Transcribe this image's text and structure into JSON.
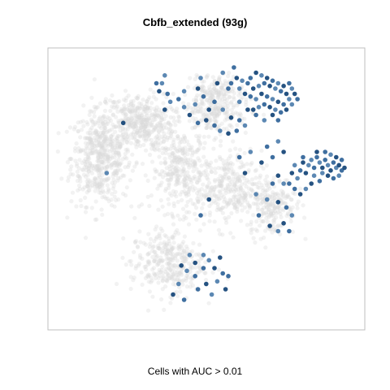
{
  "chart_data": {
    "type": "scatter",
    "title": "Cbfb_extended (93g)",
    "xlabel": "Cells with AUC > 0.01",
    "ylabel": "",
    "axes_ticks": false,
    "grid": false,
    "legend": "none",
    "colors": {
      "background_cells": "#d9d9d9",
      "highlight_cells_dark": "#0d3f73",
      "highlight_cells_mid": "#2a5f96",
      "highlight_cells_light": "#4a7bab",
      "frame": "#bfbfbf"
    },
    "xlim": [
      0,
      100
    ],
    "ylim": [
      0,
      100
    ],
    "background_clusters": [
      {
        "cx": 16,
        "cy": 62,
        "sx": 9,
        "sy": 15,
        "n": 520
      },
      {
        "cx": 30,
        "cy": 75,
        "sx": 10,
        "sy": 9,
        "n": 380
      },
      {
        "cx": 45,
        "cy": 57,
        "sx": 9,
        "sy": 13,
        "n": 320
      },
      {
        "cx": 57,
        "cy": 80,
        "sx": 10,
        "sy": 8,
        "n": 250
      },
      {
        "cx": 62,
        "cy": 50,
        "sx": 10,
        "sy": 12,
        "n": 300
      },
      {
        "cx": 78,
        "cy": 44,
        "sx": 7,
        "sy": 10,
        "n": 200
      },
      {
        "cx": 40,
        "cy": 22,
        "sx": 11,
        "sy": 10,
        "n": 330
      },
      {
        "cx": 58,
        "cy": 88,
        "sx": 6,
        "sy": 4,
        "n": 80
      }
    ],
    "highlight_cells": [
      [
        72,
        94
      ],
      [
        70,
        92
      ],
      [
        74,
        93
      ],
      [
        76,
        92
      ],
      [
        78,
        91
      ],
      [
        80,
        90
      ],
      [
        82,
        89
      ],
      [
        84,
        90
      ],
      [
        85,
        88
      ],
      [
        83,
        86
      ],
      [
        81,
        87
      ],
      [
        79,
        88
      ],
      [
        77,
        89
      ],
      [
        75,
        90
      ],
      [
        73,
        89
      ],
      [
        71,
        88
      ],
      [
        69,
        90
      ],
      [
        67,
        91
      ],
      [
        65,
        92
      ],
      [
        63,
        90
      ],
      [
        66,
        88
      ],
      [
        68,
        86
      ],
      [
        70,
        85
      ],
      [
        72,
        84
      ],
      [
        74,
        86
      ],
      [
        76,
        85
      ],
      [
        78,
        84
      ],
      [
        80,
        83
      ],
      [
        82,
        82
      ],
      [
        84,
        84
      ],
      [
        86,
        86
      ],
      [
        87,
        84
      ],
      [
        85,
        82
      ],
      [
        83,
        80
      ],
      [
        81,
        79
      ],
      [
        79,
        80
      ],
      [
        77,
        81
      ],
      [
        75,
        82
      ],
      [
        73,
        81
      ],
      [
        71,
        80
      ],
      [
        64,
        96
      ],
      [
        60,
        94
      ],
      [
        58,
        90
      ],
      [
        62,
        88
      ],
      [
        66,
        83
      ],
      [
        69,
        80
      ],
      [
        72,
        78
      ],
      [
        75,
        76
      ],
      [
        78,
        78
      ],
      [
        80,
        76
      ],
      [
        52,
        92
      ],
      [
        51,
        88
      ],
      [
        53,
        85
      ],
      [
        50,
        82
      ],
      [
        55,
        80
      ],
      [
        57,
        83
      ],
      [
        60,
        80
      ],
      [
        63,
        77
      ],
      [
        66,
        76
      ],
      [
        68,
        74
      ],
      [
        54,
        76
      ],
      [
        57,
        74
      ],
      [
        59,
        72
      ],
      [
        62,
        71
      ],
      [
        65,
        72
      ],
      [
        38,
        90
      ],
      [
        37,
        87
      ],
      [
        40,
        86
      ],
      [
        41,
        83
      ],
      [
        39,
        80
      ],
      [
        44,
        84
      ],
      [
        46,
        81
      ],
      [
        48,
        78
      ],
      [
        51,
        75
      ],
      [
        46,
        87
      ],
      [
        24,
        75
      ],
      [
        94,
        62
      ],
      [
        95,
        60
      ],
      [
        96,
        58
      ],
      [
        97,
        61
      ],
      [
        98,
        59
      ],
      [
        99,
        57
      ],
      [
        100,
        60
      ],
      [
        101,
        58
      ],
      [
        102,
        59
      ],
      [
        103,
        57
      ],
      [
        96,
        56
      ],
      [
        98,
        55
      ],
      [
        100,
        54
      ],
      [
        102,
        55
      ],
      [
        104,
        58
      ],
      [
        93,
        58
      ],
      [
        92,
        61
      ],
      [
        94,
        64
      ],
      [
        97,
        64
      ],
      [
        99,
        63
      ],
      [
        101,
        62
      ],
      [
        103,
        61
      ],
      [
        91,
        59
      ],
      [
        90,
        56
      ],
      [
        95,
        53
      ],
      [
        93,
        55
      ],
      [
        89,
        60
      ],
      [
        88,
        57
      ],
      [
        87,
        54
      ],
      [
        92,
        52
      ],
      [
        89,
        62
      ],
      [
        86,
        59
      ],
      [
        85,
        56
      ],
      [
        84,
        52
      ],
      [
        90,
        50
      ],
      [
        88,
        48
      ],
      [
        86,
        50
      ],
      [
        82,
        52
      ],
      [
        80,
        55
      ],
      [
        78,
        52
      ],
      [
        76,
        46
      ],
      [
        80,
        45
      ],
      [
        83,
        43
      ],
      [
        85,
        40
      ],
      [
        82,
        37
      ],
      [
        84,
        34
      ],
      [
        80,
        34
      ],
      [
        77,
        36
      ],
      [
        73,
        40
      ],
      [
        72,
        48
      ],
      [
        68,
        56
      ],
      [
        66,
        62
      ],
      [
        70,
        64
      ],
      [
        74,
        60
      ],
      [
        76,
        66
      ],
      [
        80,
        68
      ],
      [
        82,
        64
      ],
      [
        78,
        62
      ],
      [
        18,
        56
      ],
      [
        55,
        46
      ],
      [
        52,
        40
      ],
      [
        48,
        25
      ],
      [
        50,
        22
      ],
      [
        53,
        20
      ],
      [
        55,
        23
      ],
      [
        57,
        20
      ],
      [
        60,
        18
      ],
      [
        58,
        15
      ],
      [
        54,
        14
      ],
      [
        50,
        17
      ],
      [
        47,
        19
      ],
      [
        45,
        21
      ],
      [
        51,
        12
      ],
      [
        56,
        10
      ],
      [
        61,
        12
      ],
      [
        62,
        17
      ],
      [
        44,
        14
      ],
      [
        42,
        10
      ],
      [
        46,
        8
      ],
      [
        53,
        25
      ],
      [
        59,
        24
      ],
      [
        36,
        90
      ],
      [
        39,
        93
      ]
    ]
  }
}
